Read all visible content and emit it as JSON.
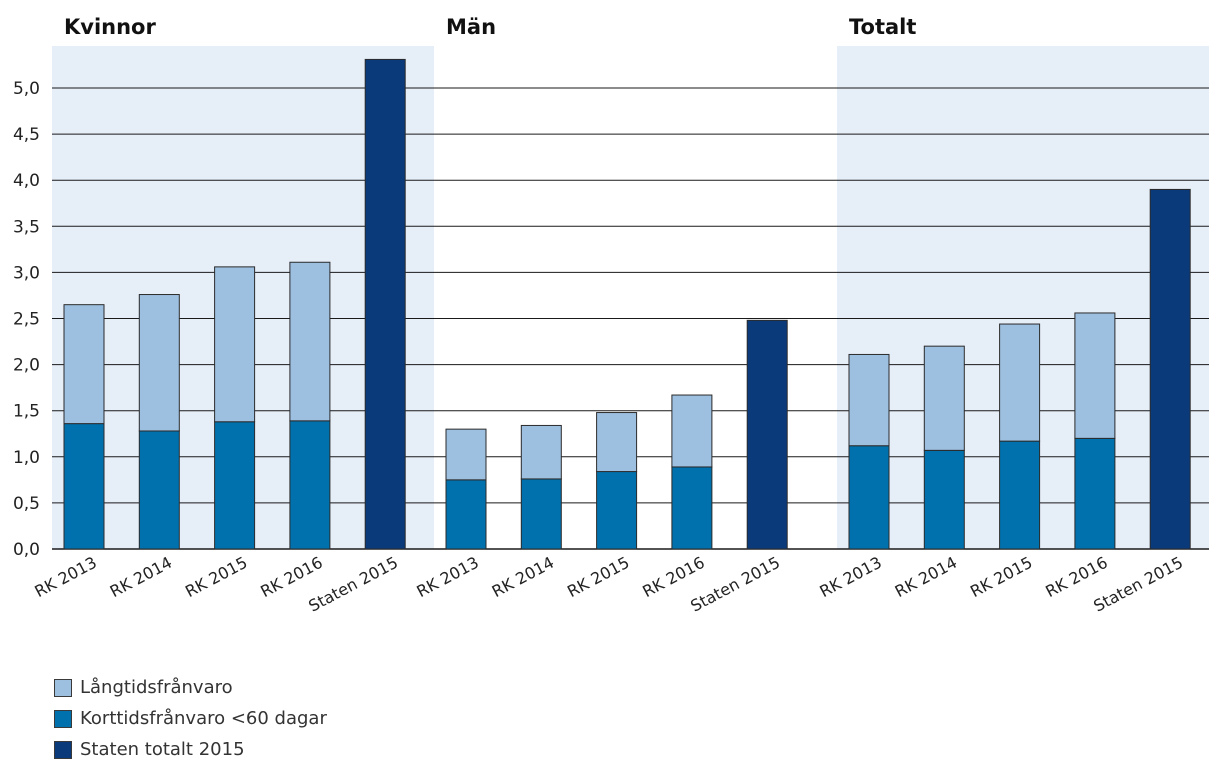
{
  "chart_data": {
    "type": "bar",
    "stacked": true,
    "ylim": [
      0,
      5.4
    ],
    "yticks": [
      "0,0",
      "0,5",
      "1,0",
      "1,5",
      "2,0",
      "2,5",
      "3,0",
      "3,5",
      "4,0",
      "4,5",
      "5,0"
    ],
    "grid": true,
    "legend_position": "bottom-left",
    "groups": [
      {
        "title": "Kvinnor",
        "shaded": true,
        "categories": [
          "RK 2013",
          "RK 2014",
          "RK 2015",
          "RK 2016",
          "Staten 2015"
        ],
        "korttid": [
          1.36,
          1.28,
          1.38,
          1.39,
          null
        ],
        "langtid": [
          1.29,
          1.48,
          1.68,
          1.72,
          null
        ],
        "staten_totalt": [
          null,
          null,
          null,
          null,
          5.31
        ]
      },
      {
        "title": "Män",
        "shaded": false,
        "categories": [
          "RK 2013",
          "RK 2014",
          "RK 2015",
          "RK 2016",
          "Staten 2015"
        ],
        "korttid": [
          0.75,
          0.76,
          0.84,
          0.89,
          null
        ],
        "langtid": [
          0.55,
          0.58,
          0.64,
          0.78,
          null
        ],
        "staten_totalt": [
          null,
          null,
          null,
          null,
          2.48
        ]
      },
      {
        "title": "Totalt",
        "shaded": true,
        "categories": [
          "RK 2013",
          "RK 2014",
          "RK 2015",
          "RK 2016",
          "Staten 2015"
        ],
        "korttid": [
          1.12,
          1.07,
          1.17,
          1.2,
          null
        ],
        "langtid": [
          0.99,
          1.13,
          1.27,
          1.36,
          null
        ],
        "staten_totalt": [
          null,
          null,
          null,
          null,
          3.9
        ]
      }
    ],
    "legend": [
      {
        "key": "langtid",
        "label": "Långtidsfrånvaro",
        "color": "#9dbfe0"
      },
      {
        "key": "korttid",
        "label": "Korttidsfrånvaro <60 dagar",
        "color": "#0071ad"
      },
      {
        "key": "staten_totalt",
        "label": "Staten totalt 2015",
        "color": "#0b3a7a"
      }
    ],
    "colors": {
      "shade": "#e6eef8",
      "grid": "#1a1a1a",
      "bar_edge": "#2b2b2b"
    }
  }
}
